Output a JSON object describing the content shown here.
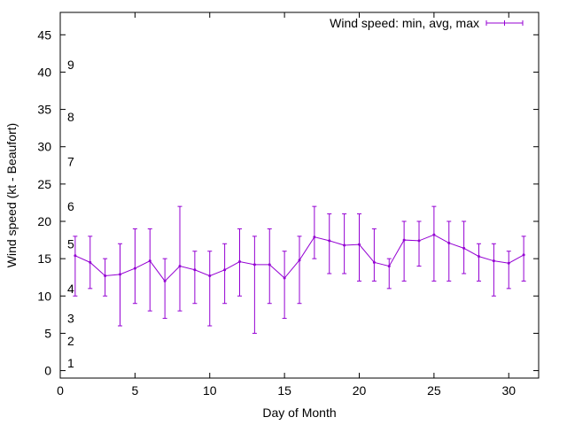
{
  "chart_data": {
    "type": "line",
    "title": "",
    "xlabel": "Day of Month",
    "ylabel": "Wind speed (kt - Beaufort)",
    "xlim": [
      0,
      32
    ],
    "ylim": [
      -1,
      48
    ],
    "x_ticks": [
      0,
      5,
      10,
      15,
      20,
      25,
      30
    ],
    "y_ticks": [
      0,
      5,
      10,
      15,
      20,
      25,
      30,
      35,
      40,
      45
    ],
    "grid": false,
    "legend_position": "top-right",
    "beaufort_labels": [
      {
        "label": "1",
        "y": 1
      },
      {
        "label": "2",
        "y": 4
      },
      {
        "label": "3",
        "y": 7
      },
      {
        "label": "4",
        "y": 11
      },
      {
        "label": "5",
        "y": 17
      },
      {
        "label": "6",
        "y": 22
      },
      {
        "label": "7",
        "y": 28
      },
      {
        "label": "8",
        "y": 34
      },
      {
        "label": "9",
        "y": 41
      }
    ],
    "series": [
      {
        "name": "Wind speed: min, avg, max",
        "color": "#9400d3",
        "x": [
          1,
          2,
          3,
          4,
          5,
          6,
          7,
          8,
          9,
          10,
          11,
          12,
          13,
          14,
          15,
          16,
          17,
          18,
          19,
          20,
          21,
          22,
          23,
          24,
          25,
          26,
          27,
          28,
          29,
          30,
          31
        ],
        "avg": [
          15.4,
          14.5,
          12.7,
          12.9,
          13.7,
          14.7,
          12.0,
          14.0,
          13.5,
          12.7,
          13.5,
          14.6,
          14.2,
          14.2,
          12.4,
          14.8,
          17.9,
          17.4,
          16.8,
          16.9,
          14.5,
          14.0,
          17.5,
          17.4,
          18.2,
          17.1,
          16.4,
          15.3,
          14.7,
          14.4,
          15.5
        ],
        "min": [
          10,
          11,
          10,
          6,
          9,
          8,
          7,
          8,
          9,
          6,
          9,
          10,
          5,
          9,
          7,
          9,
          15,
          13,
          13,
          12,
          12,
          11,
          12,
          14,
          12,
          12,
          13,
          12,
          10,
          11,
          12
        ],
        "max": [
          18,
          18,
          15,
          17,
          19,
          19,
          15,
          22,
          16,
          16,
          17,
          19,
          18,
          19,
          16,
          18,
          22,
          21,
          21,
          21,
          19,
          15,
          20,
          20,
          22,
          20,
          20,
          17,
          17,
          16,
          18
        ]
      }
    ]
  }
}
